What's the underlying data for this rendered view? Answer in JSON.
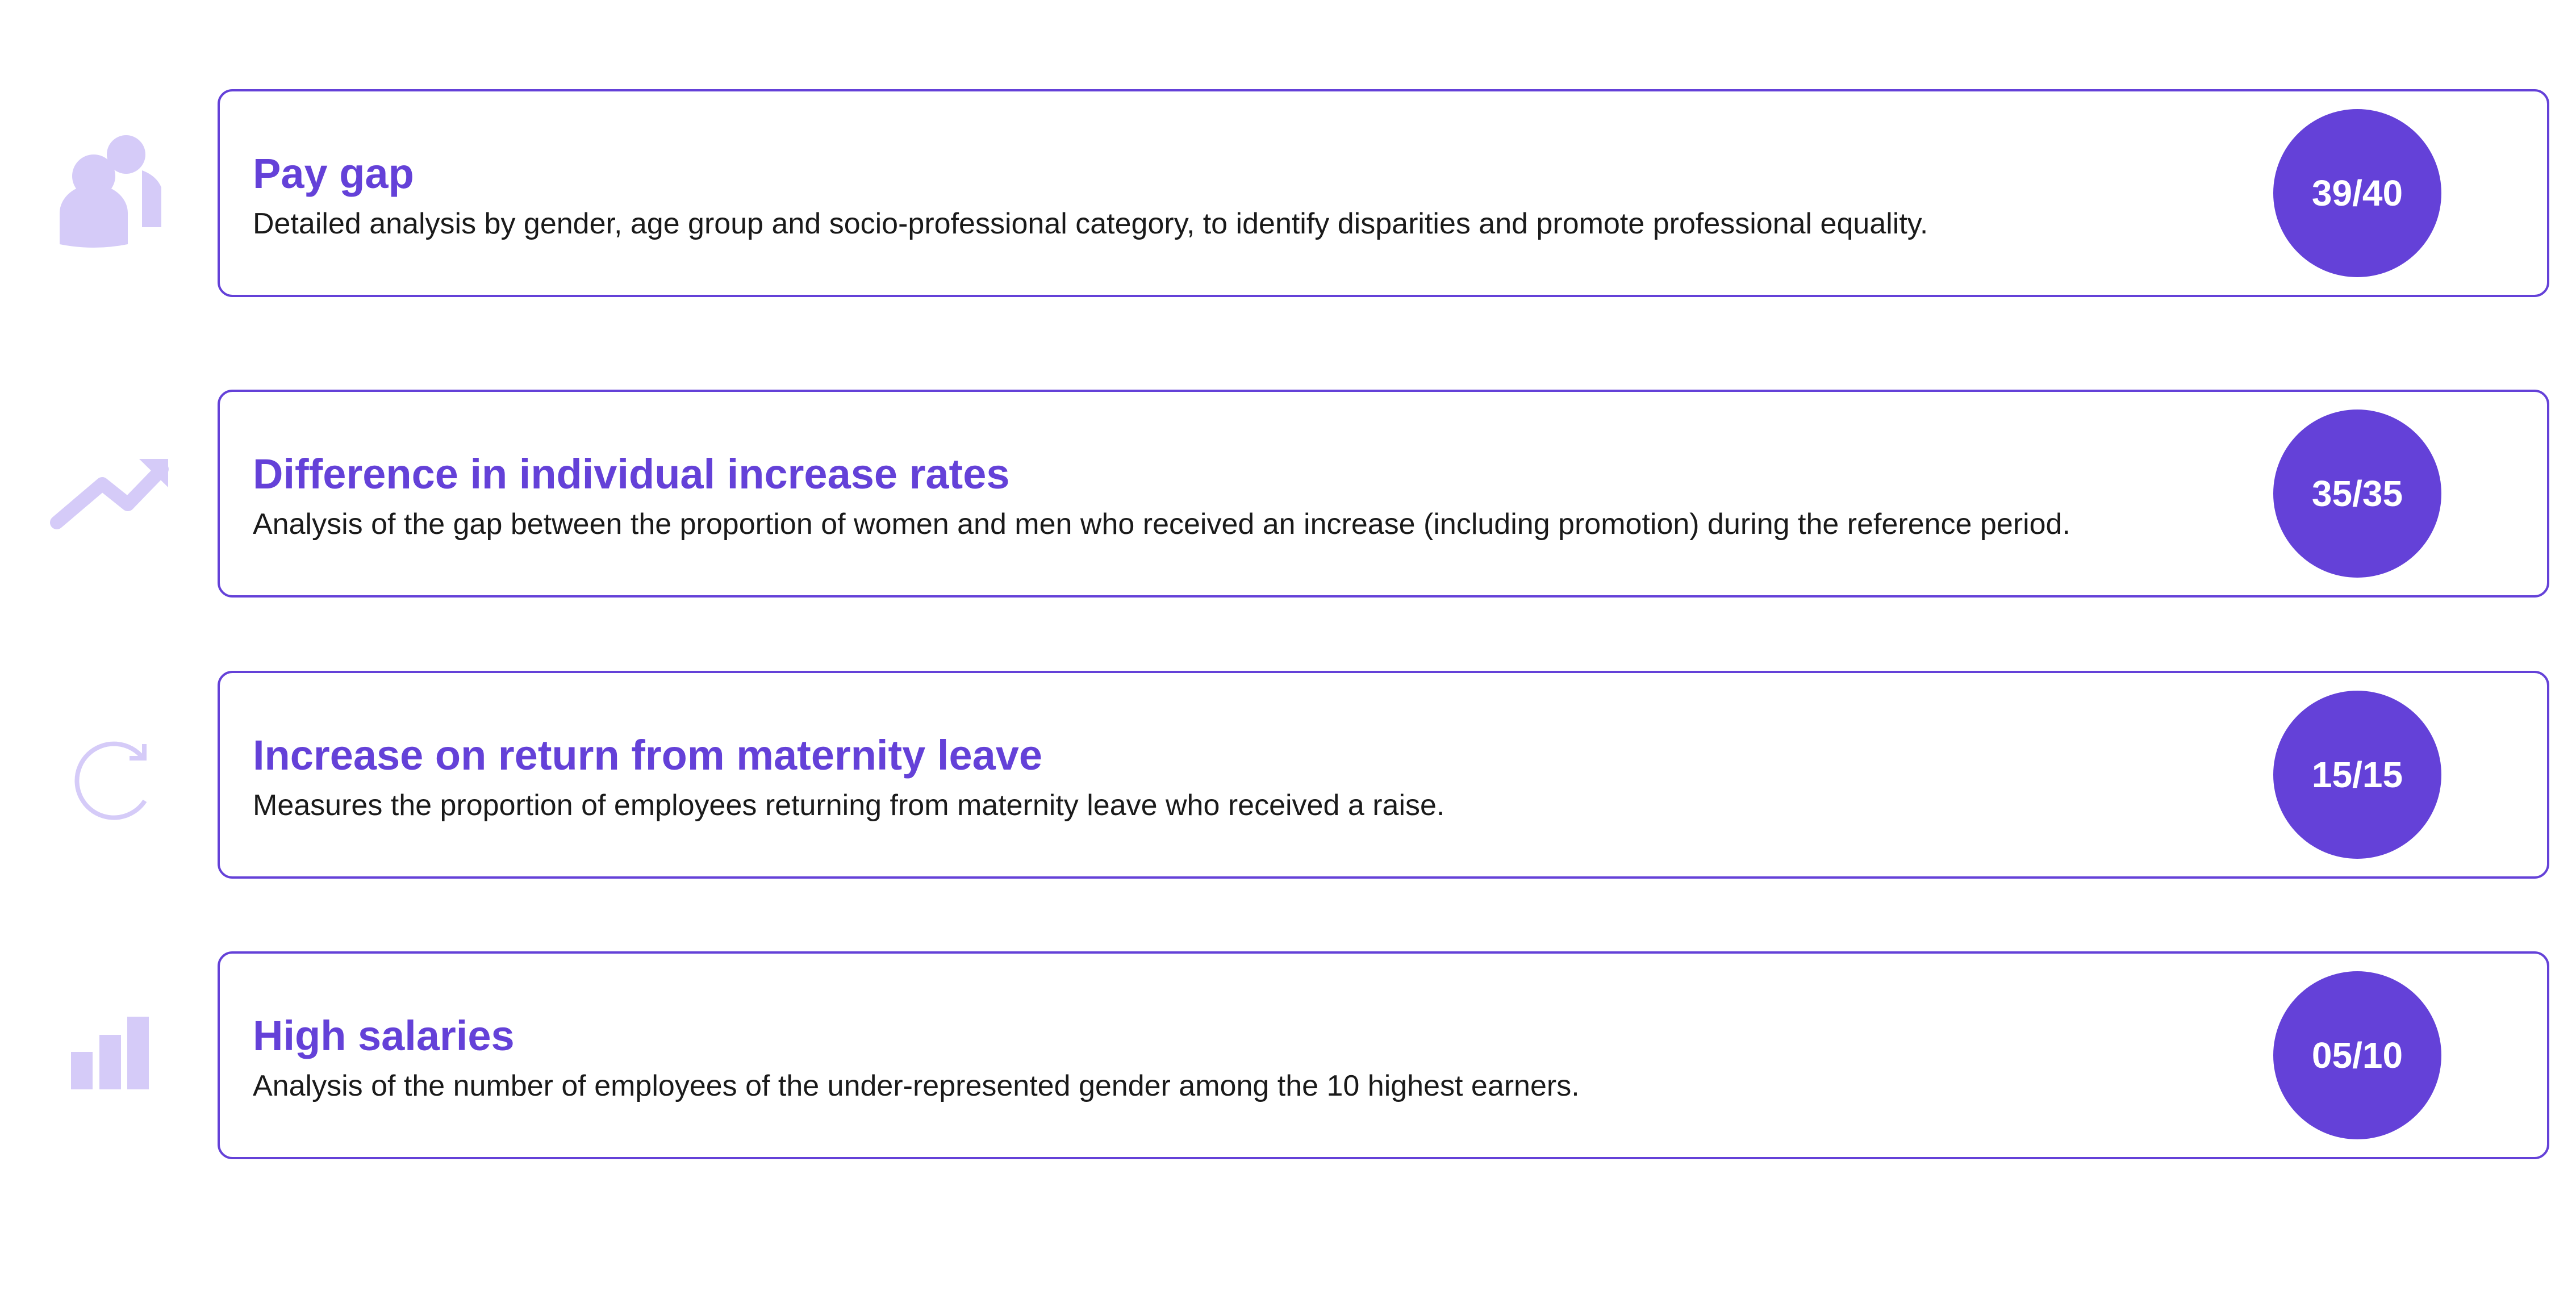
{
  "cards": [
    {
      "title": "Pay gap",
      "description": "Detailed analysis by gender, age group and socio-professional category, to identify disparities and promote professional equality.",
      "score": "39/40"
    },
    {
      "title": "Difference in individual increase rates",
      "description": "Analysis of the gap between the proportion of women and men who received an increase (including promotion) during the reference period.",
      "score": "35/35"
    },
    {
      "title": "Increase on return from maternity leave",
      "description": "Measures the proportion of employees returning from maternity leave who received a raise.",
      "score": "15/15"
    },
    {
      "title": "High salaries",
      "description": "Analysis of the number of employees of the under-represented gender among the 10 highest earners.",
      "score": "05/10"
    }
  ]
}
